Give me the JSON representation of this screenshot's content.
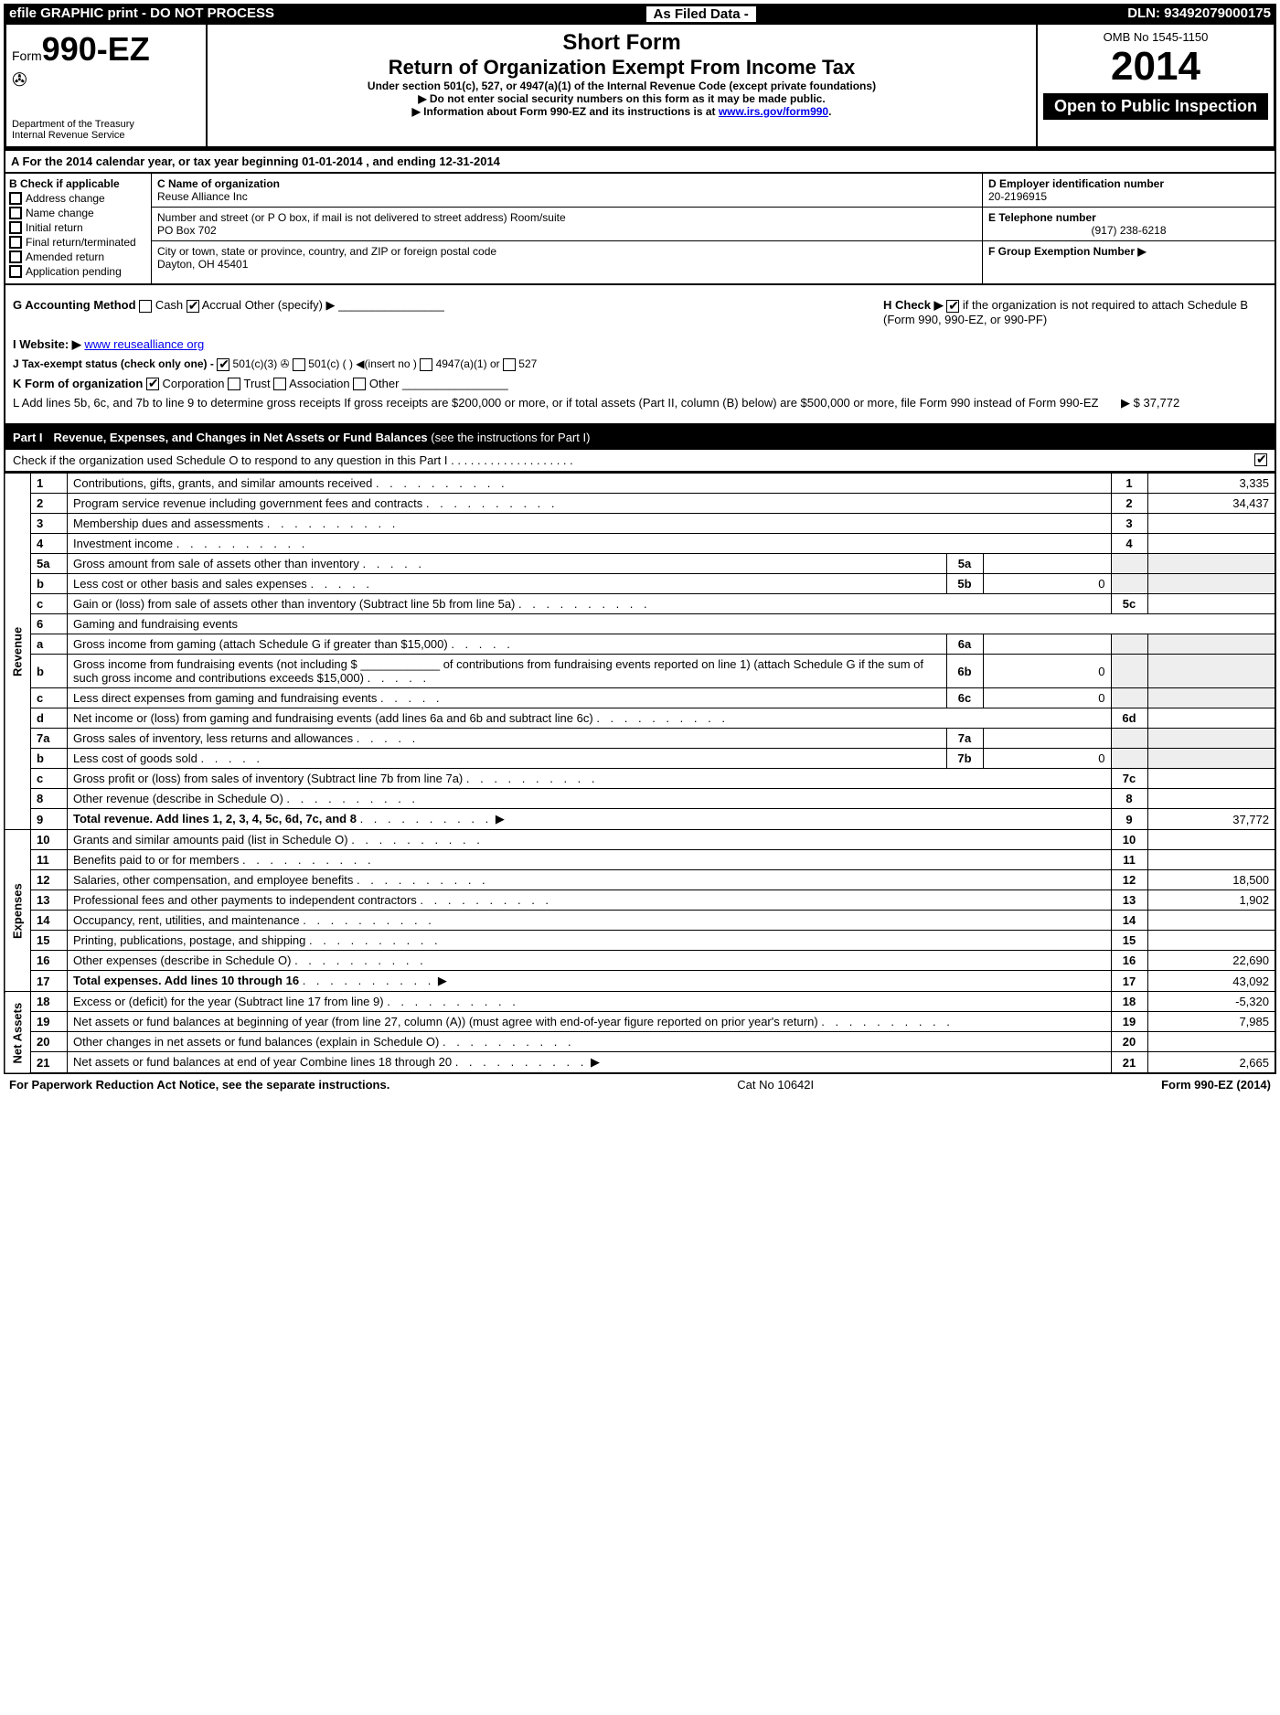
{
  "top": {
    "left": "efile GRAPHIC print - DO NOT PROCESS",
    "mid": "As Filed Data -",
    "right": "DLN: 93492079000175"
  },
  "header": {
    "form_prefix": "Form",
    "form_number": "990-EZ",
    "dept1": "Department of the Treasury",
    "dept2": "Internal Revenue Service",
    "short_form": "Short Form",
    "title": "Return of Organization Exempt From Income Tax",
    "subtitle": "Under section 501(c), 527, or 4947(a)(1) of the Internal Revenue Code (except private foundations)",
    "note1": "▶ Do not enter social security numbers on this form as it may be made public.",
    "note2": "▶ Information about Form 990-EZ and its instructions is at ",
    "link": "www.irs.gov/form990",
    "omb": "OMB No 1545-1150",
    "year": "2014",
    "open": "Open to Public Inspection"
  },
  "sectionA": "A  For the 2014 calendar year, or tax year beginning 01-01-2014                    , and ending 12-31-2014",
  "colB": {
    "label": "B  Check if applicable",
    "items": [
      "Address change",
      "Name change",
      "Initial return",
      "Final return/terminated",
      "Amended return",
      "Application pending"
    ]
  },
  "colC": {
    "name_label": "C Name of organization",
    "name": "Reuse Alliance Inc",
    "street_label": "Number and street (or P O box, if mail is not delivered to street address) Room/suite",
    "street": "PO Box 702",
    "city_label": "City or town, state or province, country, and ZIP or foreign postal code",
    "city": "Dayton, OH  45401"
  },
  "colD": {
    "ein_label": "D Employer identification number",
    "ein": "20-2196915",
    "tel_label": "E Telephone number",
    "tel": "(917) 238-6218",
    "group_label": "F Group Exemption Number   ▶"
  },
  "middle": {
    "G": "G Accounting Method",
    "G_cash": "Cash",
    "G_accrual": "Accrual",
    "G_other": "Other (specify) ▶",
    "H": "H  Check ▶",
    "H_text": "if the organization is not required to attach Schedule B (Form 990, 990-EZ, or 990-PF)",
    "I": "I Website: ▶",
    "website": "www reusealliance org",
    "J": "J Tax-exempt status (check only one) -",
    "J1": "501(c)(3)",
    "J2": "501(c) (  ) ◀(insert no )",
    "J3": "4947(a)(1) or",
    "J4": "527",
    "K": "K Form of organization",
    "K1": "Corporation",
    "K2": "Trust",
    "K3": "Association",
    "K4": "Other",
    "L": "L Add lines 5b, 6c, and 7b to line 9 to determine gross receipts  If gross receipts are $200,000 or more, or if total assets (Part II, column (B) below) are $500,000 or more, file Form 990 instead of Form 990-EZ",
    "L_amt_label": "▶ $",
    "L_amt": "37,772"
  },
  "part1": {
    "label": "Part I",
    "title": "Revenue, Expenses, and Changes in Net Assets or Fund Balances",
    "title_note": "(see the instructions for Part I)",
    "sub": "Check if the organization used Schedule O to respond to any question in this Part I  . . . . . . . . . . . . . . . . . . .",
    "sub_check": "✔"
  },
  "rows": [
    {
      "section": "Revenue",
      "num": "1",
      "desc": "Contributions, gifts, grants, and similar amounts received",
      "box": "1",
      "amt": "3,335"
    },
    {
      "num": "2",
      "desc": "Program service revenue including government fees and contracts",
      "box": "2",
      "amt": "34,437"
    },
    {
      "num": "3",
      "desc": "Membership dues and assessments",
      "box": "3",
      "amt": ""
    },
    {
      "num": "4",
      "desc": "Investment income",
      "box": "4",
      "amt": ""
    },
    {
      "num": "5a",
      "desc": "Gross amount from sale of assets other than inventory",
      "inline_box": "5a",
      "inline_amt": ""
    },
    {
      "num": "b",
      "desc": "Less  cost or other basis and sales expenses",
      "inline_box": "5b",
      "inline_amt": "0"
    },
    {
      "num": "c",
      "desc": "Gain or (loss) from sale of assets other than inventory (Subtract line 5b from line 5a)",
      "box": "5c",
      "amt": ""
    },
    {
      "num": "6",
      "desc": "Gaming and fundraising events"
    },
    {
      "num": "a",
      "desc": "Gross income from gaming (attach Schedule G if greater than $15,000)",
      "inline_box": "6a",
      "inline_amt": ""
    },
    {
      "num": "b",
      "desc": "Gross income from fundraising events (not including $ ____________ of contributions from fundraising events reported on line 1) (attach Schedule G if the sum of such gross income and contributions exceeds $15,000)",
      "inline_box": "6b",
      "inline_amt": "0"
    },
    {
      "num": "c",
      "desc": "Less  direct expenses from gaming and fundraising events",
      "inline_box": "6c",
      "inline_amt": "0"
    },
    {
      "num": "d",
      "desc": "Net income or (loss) from gaming and fundraising events (add lines 6a and 6b and subtract line 6c)",
      "box": "6d",
      "amt": ""
    },
    {
      "num": "7a",
      "desc": "Gross sales of inventory, less returns and allowances",
      "inline_box": "7a",
      "inline_amt": ""
    },
    {
      "num": "b",
      "desc": "Less  cost of goods sold",
      "inline_box": "7b",
      "inline_amt": "0"
    },
    {
      "num": "c",
      "desc": "Gross profit or (loss) from sales of inventory (Subtract line 7b from line 7a)",
      "box": "7c",
      "amt": ""
    },
    {
      "num": "8",
      "desc": "Other revenue (describe in Schedule O)",
      "box": "8",
      "amt": ""
    },
    {
      "num": "9",
      "desc": "Total revenue. Add lines 1, 2, 3, 4, 5c, 6d, 7c, and 8",
      "box": "9",
      "amt": "37,772",
      "bold": true,
      "arrow": true
    },
    {
      "section": "Expenses",
      "num": "10",
      "desc": "Grants and similar amounts paid (list in Schedule O)",
      "box": "10",
      "amt": ""
    },
    {
      "num": "11",
      "desc": "Benefits paid to or for members",
      "box": "11",
      "amt": ""
    },
    {
      "num": "12",
      "desc": "Salaries, other compensation, and employee benefits",
      "box": "12",
      "amt": "18,500"
    },
    {
      "num": "13",
      "desc": "Professional fees and other payments to independent contractors",
      "box": "13",
      "amt": "1,902"
    },
    {
      "num": "14",
      "desc": "Occupancy, rent, utilities, and maintenance",
      "box": "14",
      "amt": ""
    },
    {
      "num": "15",
      "desc": "Printing, publications, postage, and shipping",
      "box": "15",
      "amt": ""
    },
    {
      "num": "16",
      "desc": "Other expenses (describe in Schedule O)",
      "box": "16",
      "amt": "22,690"
    },
    {
      "num": "17",
      "desc": "Total expenses. Add lines 10 through 16",
      "box": "17",
      "amt": "43,092",
      "bold": true,
      "arrow": true
    },
    {
      "section": "Net Assets",
      "num": "18",
      "desc": "Excess or (deficit) for the year (Subtract line 17 from line 9)",
      "box": "18",
      "amt": "-5,320"
    },
    {
      "num": "19",
      "desc": "Net assets or fund balances at beginning of year (from line 27, column (A)) (must agree with end-of-year figure reported on prior year's return)",
      "box": "19",
      "amt": "7,985"
    },
    {
      "num": "20",
      "desc": "Other changes in net assets or fund balances (explain in Schedule O)",
      "box": "20",
      "amt": ""
    },
    {
      "num": "21",
      "desc": "Net assets or fund balances at end of year  Combine lines 18 through 20",
      "box": "21",
      "amt": "2,665",
      "arrow": true
    }
  ],
  "footer": {
    "left": "For Paperwork Reduction Act Notice, see the separate instructions.",
    "mid": "Cat No 10642I",
    "right": "Form 990-EZ (2014)"
  }
}
